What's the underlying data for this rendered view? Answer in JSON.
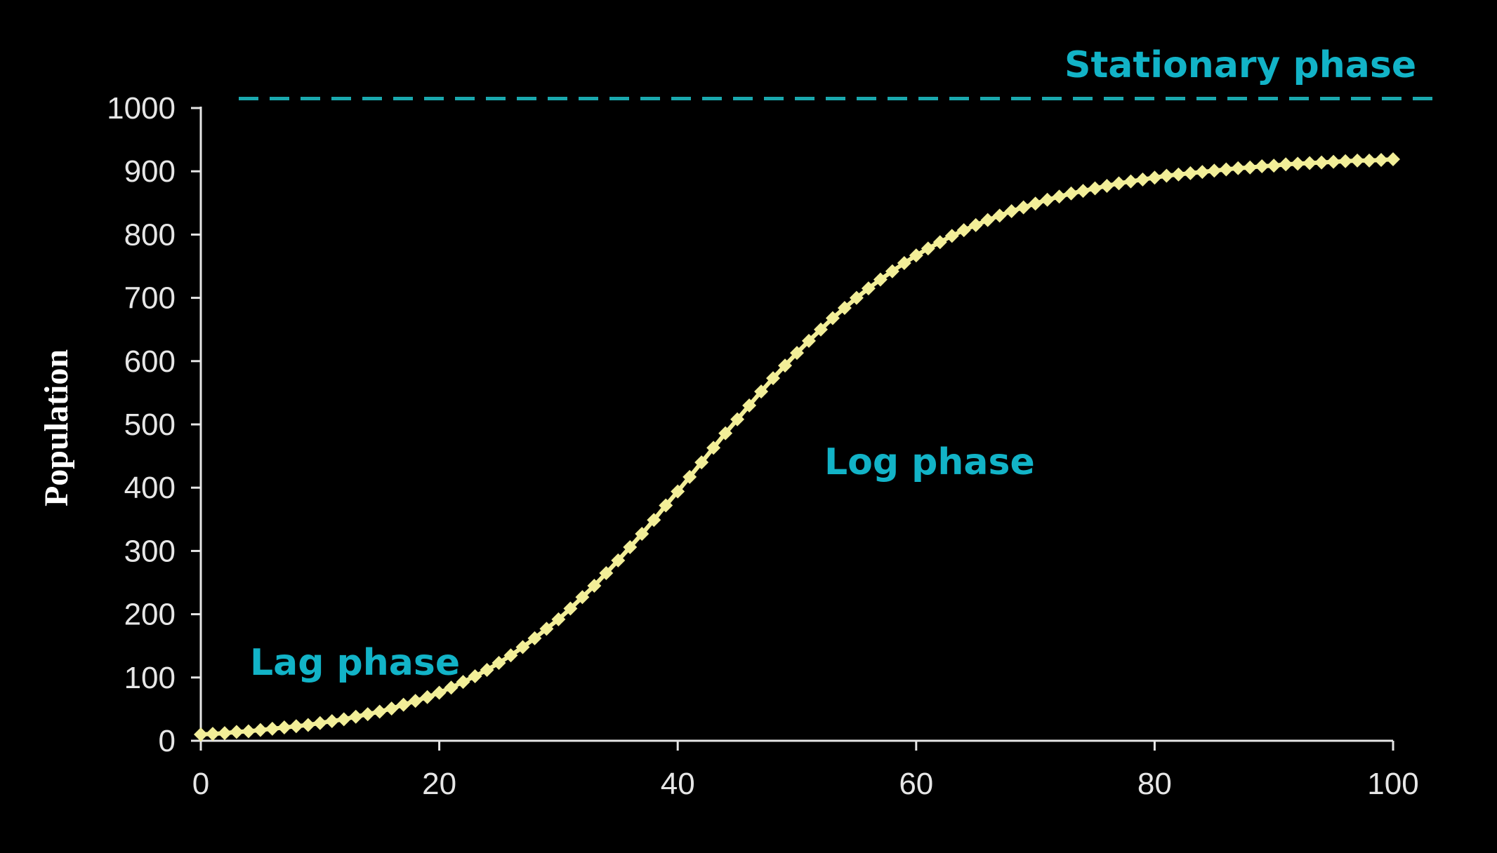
{
  "chart_data": {
    "type": "scatter",
    "title": "",
    "xlabel": "",
    "ylabel": "Population",
    "xlim": [
      0,
      100
    ],
    "ylim": [
      0,
      1000
    ],
    "xticks": [
      "0",
      "20",
      "40",
      "60",
      "80",
      "100"
    ],
    "yticks": [
      "0",
      "100",
      "200",
      "300",
      "400",
      "500",
      "600",
      "700",
      "800",
      "900",
      "1000"
    ],
    "grid": false,
    "legend": "none",
    "series": [
      {
        "marker": "diamond",
        "connected": true,
        "x": [
          0,
          1,
          2,
          3,
          4,
          5,
          6,
          7,
          8,
          9,
          10,
          11,
          12,
          13,
          14,
          15,
          16,
          17,
          18,
          19,
          20,
          21,
          22,
          23,
          24,
          25,
          26,
          27,
          28,
          29,
          30,
          31,
          32,
          33,
          34,
          35,
          36,
          37,
          38,
          39,
          40,
          41,
          42,
          43,
          44,
          45,
          46,
          47,
          48,
          49,
          50,
          51,
          52,
          53,
          54,
          55,
          56,
          57,
          58,
          59,
          60,
          61,
          62,
          63,
          64,
          65,
          66,
          67,
          68,
          69,
          70,
          71,
          72,
          73,
          74,
          75,
          76,
          77,
          78,
          79,
          80,
          81,
          82,
          83,
          84,
          85,
          86,
          87,
          88,
          89,
          90,
          91,
          92,
          93,
          94,
          95,
          96,
          97,
          98,
          99,
          100
        ],
        "y": [
          10,
          11,
          12,
          14,
          15,
          17,
          19,
          21,
          23,
          25,
          28,
          31,
          34,
          38,
          42,
          46,
          51,
          57,
          63,
          69,
          76,
          84,
          93,
          102,
          112,
          123,
          135,
          148,
          162,
          177,
          192,
          209,
          227,
          245,
          265,
          285,
          306,
          327,
          349,
          372,
          394,
          417,
          440,
          463,
          486,
          508,
          530,
          552,
          573,
          593,
          613,
          632,
          650,
          668,
          684,
          700,
          715,
          729,
          742,
          755,
          767,
          778,
          788,
          798,
          807,
          815,
          823,
          830,
          837,
          843,
          849,
          855,
          860,
          865,
          869,
          873,
          877,
          881,
          884,
          887,
          890,
          893,
          895,
          897,
          899,
          901,
          903,
          905,
          906,
          908,
          909,
          911,
          912,
          913,
          914,
          915,
          916,
          917,
          917,
          918,
          919
        ]
      }
    ],
    "reference_line": {
      "y": 1015,
      "style": "dashed"
    },
    "annotations": [
      {
        "text": "Stationary phase"
      },
      {
        "text": "Log phase"
      },
      {
        "text": "Lag phase"
      }
    ]
  },
  "colors": {
    "background": "#000000",
    "axis": "#e6e6e6",
    "marker": "#f2ee98",
    "annotation": "#12b3c7",
    "reference_line": "#1aa8ae"
  }
}
